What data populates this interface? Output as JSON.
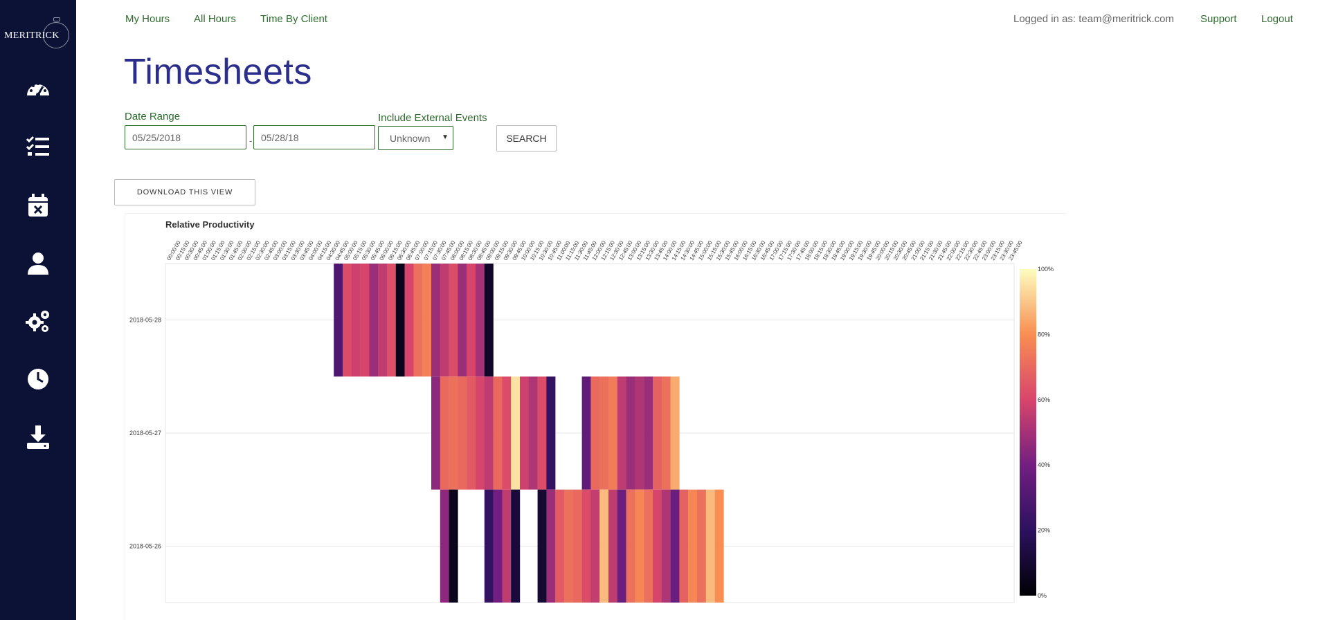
{
  "brand": {
    "logo_text": "MERITRICK"
  },
  "sidebar": {
    "items": [
      {
        "icon": "dashboard-gauge-icon"
      },
      {
        "icon": "tasks-list-icon"
      },
      {
        "icon": "calendar-x-icon"
      },
      {
        "icon": "user-icon"
      },
      {
        "icon": "gears-icon"
      },
      {
        "icon": "clock-icon"
      },
      {
        "icon": "download-icon"
      }
    ]
  },
  "nav": {
    "my_hours": "My Hours",
    "all_hours": "All Hours",
    "time_by_client": "Time By Client",
    "logged_in": "Logged in as: team@meritrick.com",
    "support": "Support",
    "logout": "Logout"
  },
  "page": {
    "title": "Timesheets"
  },
  "filters": {
    "date_range_label": "Date Range",
    "start_date": "05/25/2018",
    "separator": "-",
    "end_date": "05/28/18",
    "external_label": "Include External Events",
    "external_value": "Unknown",
    "search_label": "SEARCH"
  },
  "download": {
    "label": "DOWNLOAD THIS VIEW"
  },
  "colors": {
    "sidebar_bg": "#0b1236",
    "nav_green": "#2e6b2e",
    "title_blue": "#2b2e8b"
  },
  "chart_data": {
    "type": "heatmap",
    "title": "Relative Productivity",
    "x_categories": [
      "00:00:00",
      "00:15:00",
      "00:30:00",
      "00:45:00",
      "01:00:00",
      "01:15:00",
      "01:30:00",
      "01:45:00",
      "02:00:00",
      "02:15:00",
      "02:30:00",
      "02:45:00",
      "03:00:00",
      "03:15:00",
      "03:30:00",
      "03:45:00",
      "04:00:00",
      "04:15:00",
      "04:30:00",
      "04:45:00",
      "05:00:00",
      "05:15:00",
      "05:30:00",
      "05:45:00",
      "06:00:00",
      "06:15:00",
      "06:30:00",
      "06:45:00",
      "07:00:00",
      "07:15:00",
      "07:30:00",
      "07:45:00",
      "08:00:00",
      "08:15:00",
      "08:30:00",
      "08:45:00",
      "09:00:00",
      "09:15:00",
      "09:30:00",
      "09:45:00",
      "10:00:00",
      "10:15:00",
      "10:30:00",
      "10:45:00",
      "11:00:00",
      "11:15:00",
      "11:30:00",
      "11:45:00",
      "12:00:00",
      "12:15:00",
      "12:30:00",
      "12:45:00",
      "13:00:00",
      "13:15:00",
      "13:30:00",
      "13:45:00",
      "14:00:00",
      "14:15:00",
      "14:30:00",
      "14:45:00",
      "15:00:00",
      "15:15:00",
      "15:30:00",
      "15:45:00",
      "16:00:00",
      "16:15:00",
      "16:30:00",
      "16:45:00",
      "17:00:00",
      "17:15:00",
      "17:30:00",
      "17:45:00",
      "18:00:00",
      "18:15:00",
      "18:30:00",
      "18:45:00",
      "19:00:00",
      "19:15:00",
      "19:30:00",
      "19:45:00",
      "20:00:00",
      "20:15:00",
      "20:30:00",
      "20:45:00",
      "21:00:00",
      "21:15:00",
      "21:30:00",
      "21:45:00",
      "22:00:00",
      "22:15:00",
      "22:30:00",
      "22:45:00",
      "23:00:00",
      "23:15:00",
      "23:30:00",
      "23:45:00"
    ],
    "y_categories": [
      "2018-05-28",
      "2018-05-27",
      "2018-05-26"
    ],
    "colorbar": {
      "ticks": [
        "0%",
        "20%",
        "40%",
        "60%",
        "80%",
        "100%"
      ],
      "min": 0,
      "max": 100
    },
    "rows": [
      {
        "date": "2018-05-28",
        "cells": [
          {
            "slot": 19,
            "value": 30
          },
          {
            "slot": 20,
            "value": 62
          },
          {
            "slot": 21,
            "value": 58
          },
          {
            "slot": 22,
            "value": 60
          },
          {
            "slot": 23,
            "value": 48
          },
          {
            "slot": 24,
            "value": 55
          },
          {
            "slot": 25,
            "value": 63
          },
          {
            "slot": 26,
            "value": 5
          },
          {
            "slot": 27,
            "value": 60
          },
          {
            "slot": 28,
            "value": 72
          },
          {
            "slot": 29,
            "value": 76
          },
          {
            "slot": 30,
            "value": 48
          },
          {
            "slot": 31,
            "value": 55
          },
          {
            "slot": 32,
            "value": 62
          },
          {
            "slot": 33,
            "value": 48
          },
          {
            "slot": 34,
            "value": 60
          },
          {
            "slot": 35,
            "value": 50
          },
          {
            "slot": 36,
            "value": 8
          }
        ]
      },
      {
        "date": "2018-05-27",
        "cells": [
          {
            "slot": 30,
            "value": 45
          },
          {
            "slot": 31,
            "value": 70
          },
          {
            "slot": 32,
            "value": 72
          },
          {
            "slot": 33,
            "value": 70
          },
          {
            "slot": 34,
            "value": 66
          },
          {
            "slot": 35,
            "value": 60
          },
          {
            "slot": 36,
            "value": 55
          },
          {
            "slot": 37,
            "value": 70
          },
          {
            "slot": 38,
            "value": 62
          },
          {
            "slot": 39,
            "value": 95
          },
          {
            "slot": 40,
            "value": 58
          },
          {
            "slot": 41,
            "value": 52
          },
          {
            "slot": 42,
            "value": 62
          },
          {
            "slot": 43,
            "value": 22
          },
          {
            "slot": 47,
            "value": 35
          },
          {
            "slot": 48,
            "value": 70
          },
          {
            "slot": 49,
            "value": 72
          },
          {
            "slot": 50,
            "value": 75
          },
          {
            "slot": 51,
            "value": 55
          },
          {
            "slot": 52,
            "value": 48
          },
          {
            "slot": 53,
            "value": 52
          },
          {
            "slot": 54,
            "value": 48
          },
          {
            "slot": 55,
            "value": 68
          },
          {
            "slot": 56,
            "value": 72
          },
          {
            "slot": 57,
            "value": 85
          }
        ]
      },
      {
        "date": "2018-05-26",
        "cells": [
          {
            "slot": 31,
            "value": 45
          },
          {
            "slot": 32,
            "value": 5
          },
          {
            "slot": 36,
            "value": 22
          },
          {
            "slot": 37,
            "value": 40
          },
          {
            "slot": 38,
            "value": 55
          },
          {
            "slot": 39,
            "value": 12
          },
          {
            "slot": 42,
            "value": 10
          },
          {
            "slot": 43,
            "value": 48
          },
          {
            "slot": 44,
            "value": 66
          },
          {
            "slot": 45,
            "value": 72
          },
          {
            "slot": 46,
            "value": 70
          },
          {
            "slot": 47,
            "value": 62
          },
          {
            "slot": 48,
            "value": 56
          },
          {
            "slot": 49,
            "value": 88
          },
          {
            "slot": 50,
            "value": 55
          },
          {
            "slot": 51,
            "value": 38
          },
          {
            "slot": 52,
            "value": 72
          },
          {
            "slot": 53,
            "value": 78
          },
          {
            "slot": 54,
            "value": 72
          },
          {
            "slot": 55,
            "value": 60
          },
          {
            "slot": 56,
            "value": 52
          },
          {
            "slot": 57,
            "value": 38
          },
          {
            "slot": 58,
            "value": 68
          },
          {
            "slot": 59,
            "value": 78
          },
          {
            "slot": 60,
            "value": 72
          },
          {
            "slot": 61,
            "value": 88
          },
          {
            "slot": 62,
            "value": 80
          }
        ]
      }
    ],
    "grid": true
  }
}
